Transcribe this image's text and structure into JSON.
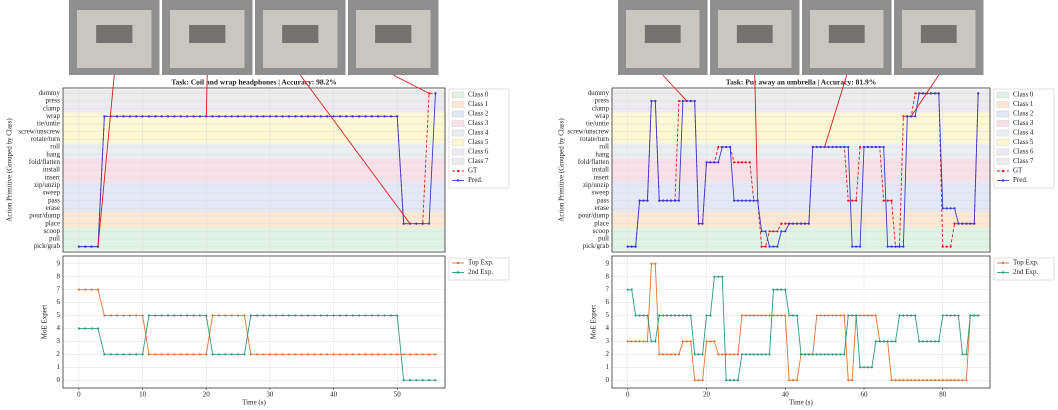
{
  "chart_data": [
    {
      "type": "line",
      "title": "Task: Coil and wrap headphones | Accuracy: 98.2%",
      "ylabel": "Action Primitive (Grouped by Class)",
      "y_categories": [
        "pick/grab",
        "pull",
        "scoop",
        "place",
        "pour/dump",
        "erase",
        "pass",
        "sweep",
        "zip/unzip",
        "insert",
        "install",
        "fold/flatten",
        "hang",
        "roll",
        "rotate/turn",
        "screw/unscrew",
        "tie/untie",
        "wrap",
        "clamp",
        "press",
        "dummy"
      ],
      "category_class": [
        0,
        0,
        0,
        1,
        1,
        2,
        2,
        2,
        2,
        3,
        3,
        3,
        4,
        4,
        5,
        5,
        5,
        5,
        6,
        7,
        7
      ],
      "classes": [
        {
          "name": "Class 0",
          "color": "#dff2e3"
        },
        {
          "name": "Class 1",
          "color": "#fde6d2"
        },
        {
          "name": "Class 2",
          "color": "#e2e8f5"
        },
        {
          "name": "Class 3",
          "color": "#f8e0e8"
        },
        {
          "name": "Class 4",
          "color": "#ebeef0"
        },
        {
          "name": "Class 5",
          "color": "#fdf7d2"
        },
        {
          "name": "Class 6",
          "color": "#eee8f3"
        },
        {
          "name": "Class 7",
          "color": "#ebebeb"
        }
      ],
      "xlim": [
        -2.5,
        57.5
      ],
      "grid": true,
      "legend": "outside right",
      "x": [
        0,
        1,
        2,
        3,
        4,
        5,
        6,
        7,
        8,
        9,
        10,
        11,
        12,
        13,
        14,
        15,
        16,
        17,
        18,
        19,
        20,
        21,
        22,
        23,
        24,
        25,
        26,
        27,
        28,
        29,
        30,
        31,
        32,
        33,
        34,
        35,
        36,
        37,
        38,
        39,
        40,
        41,
        42,
        43,
        44,
        45,
        46,
        47,
        48,
        49,
        50,
        51,
        52,
        53,
        54,
        55,
        56
      ],
      "series": [
        {
          "name": "GT",
          "color": "#e41a1c",
          "linestyle": "dashed",
          "values": [
            0,
            0,
            0,
            0,
            17,
            17,
            17,
            17,
            17,
            17,
            17,
            17,
            17,
            17,
            17,
            17,
            17,
            17,
            17,
            17,
            17,
            17,
            17,
            17,
            17,
            17,
            17,
            17,
            17,
            17,
            17,
            17,
            17,
            17,
            17,
            17,
            17,
            17,
            17,
            17,
            17,
            17,
            17,
            17,
            17,
            17,
            17,
            17,
            17,
            17,
            17,
            3,
            3,
            3,
            3,
            20,
            20
          ]
        },
        {
          "name": "Pred.",
          "color": "#3a3ad6",
          "linestyle": "solid",
          "values": [
            0,
            0,
            0,
            0,
            17,
            17,
            17,
            17,
            17,
            17,
            17,
            17,
            17,
            17,
            17,
            17,
            17,
            17,
            17,
            17,
            17,
            17,
            17,
            17,
            17,
            17,
            17,
            17,
            17,
            17,
            17,
            17,
            17,
            17,
            17,
            17,
            17,
            17,
            17,
            17,
            17,
            17,
            17,
            17,
            17,
            17,
            17,
            17,
            17,
            17,
            17,
            3,
            3,
            3,
            3,
            3,
            20
          ]
        }
      ]
    },
    {
      "type": "line",
      "xlabel": "Time (s)",
      "ylabel": "MoE Expert",
      "xlim": [
        -2.5,
        57.5
      ],
      "xticks": [
        0,
        10,
        20,
        30,
        40,
        50
      ],
      "ylim": [
        -0.6,
        9.6
      ],
      "yticks": [
        0,
        1,
        2,
        3,
        4,
        5,
        6,
        7,
        8,
        9
      ],
      "grid": true,
      "legend": "outside right",
      "x": [
        0,
        1,
        2,
        3,
        4,
        5,
        6,
        7,
        8,
        9,
        10,
        11,
        12,
        13,
        14,
        15,
        16,
        17,
        18,
        19,
        20,
        21,
        22,
        23,
        24,
        25,
        26,
        27,
        28,
        29,
        30,
        31,
        32,
        33,
        34,
        35,
        36,
        37,
        38,
        39,
        40,
        41,
        42,
        43,
        44,
        45,
        46,
        47,
        48,
        49,
        50,
        51,
        52,
        53,
        54,
        55,
        56
      ],
      "series": [
        {
          "name": "Top Exp.",
          "color": "#e8732c",
          "values": [
            7,
            7,
            7,
            7,
            5,
            5,
            5,
            5,
            5,
            5,
            5,
            2,
            2,
            2,
            2,
            2,
            2,
            2,
            2,
            2,
            2,
            5,
            5,
            5,
            5,
            5,
            5,
            2,
            2,
            2,
            2,
            2,
            2,
            2,
            2,
            2,
            2,
            2,
            2,
            2,
            2,
            2,
            2,
            2,
            2,
            2,
            2,
            2,
            2,
            2,
            2,
            2,
            2,
            2,
            2,
            2,
            2
          ]
        },
        {
          "name": "2nd Exp.",
          "color": "#2a9d78",
          "values": [
            4,
            4,
            4,
            4,
            2,
            2,
            2,
            2,
            2,
            2,
            2,
            5,
            5,
            5,
            5,
            5,
            5,
            5,
            5,
            5,
            5,
            2,
            2,
            2,
            2,
            2,
            2,
            5,
            5,
            5,
            5,
            5,
            5,
            5,
            5,
            5,
            5,
            5,
            5,
            5,
            5,
            5,
            5,
            5,
            5,
            5,
            5,
            5,
            5,
            5,
            5,
            0,
            0,
            0,
            0,
            0,
            0
          ]
        }
      ]
    },
    {
      "type": "line",
      "title": "Task: Put away an umbrella | Accuracy: 81.9%",
      "ylabel": "Action Primitive (Grouped by Class)",
      "y_categories": [
        "pick/grab",
        "pull",
        "scoop",
        "place",
        "pour/dump",
        "erase",
        "pass",
        "sweep",
        "zip/unzip",
        "insert",
        "install",
        "fold/flatten",
        "hang",
        "roll",
        "rotate/turn",
        "screw/unscrew",
        "tie/untie",
        "wrap",
        "clamp",
        "press",
        "dummy"
      ],
      "category_class": [
        0,
        0,
        0,
        1,
        1,
        2,
        2,
        2,
        2,
        3,
        3,
        3,
        4,
        4,
        5,
        5,
        5,
        5,
        6,
        7,
        7
      ],
      "classes": [
        {
          "name": "Class 0",
          "color": "#dff2e3"
        },
        {
          "name": "Class 1",
          "color": "#fde6d2"
        },
        {
          "name": "Class 2",
          "color": "#e2e8f5"
        },
        {
          "name": "Class 3",
          "color": "#f8e0e8"
        },
        {
          "name": "Class 4",
          "color": "#ebeef0"
        },
        {
          "name": "Class 5",
          "color": "#fdf7d2"
        },
        {
          "name": "Class 6",
          "color": "#eee8f3"
        },
        {
          "name": "Class 7",
          "color": "#ebebeb"
        }
      ],
      "xlim": [
        -4,
        92
      ],
      "grid": true,
      "legend": "outside right",
      "x": [
        0,
        1,
        2,
        3,
        4,
        5,
        6,
        7,
        8,
        9,
        10,
        11,
        12,
        13,
        14,
        15,
        16,
        17,
        18,
        19,
        20,
        21,
        22,
        23,
        24,
        25,
        26,
        27,
        28,
        29,
        30,
        31,
        32,
        33,
        34,
        35,
        36,
        37,
        38,
        39,
        40,
        41,
        42,
        43,
        44,
        45,
        46,
        47,
        48,
        49,
        50,
        51,
        52,
        53,
        54,
        55,
        56,
        57,
        58,
        59,
        60,
        61,
        62,
        63,
        64,
        65,
        66,
        67,
        68,
        69,
        70,
        71,
        72,
        73,
        74,
        75,
        76,
        77,
        78,
        79,
        80,
        81,
        82,
        83,
        84,
        85,
        86,
        87,
        88,
        89
      ],
      "series": [
        {
          "name": "GT",
          "color": "#e41a1c",
          "linestyle": "dashed",
          "values": [
            0,
            0,
            0,
            6,
            6,
            6,
            19,
            19,
            6,
            6,
            6,
            6,
            6,
            19,
            19,
            19,
            19,
            19,
            3,
            3,
            11,
            11,
            11,
            13,
            13,
            13,
            13,
            11,
            11,
            11,
            11,
            11,
            6,
            6,
            0,
            0,
            2,
            2,
            2,
            3,
            3,
            3,
            3,
            3,
            3,
            3,
            3,
            13,
            13,
            13,
            13,
            13,
            13,
            13,
            13,
            13,
            6,
            6,
            6,
            13,
            13,
            13,
            13,
            13,
            13,
            6,
            6,
            6,
            0,
            0,
            17,
            17,
            17,
            20,
            20,
            20,
            20,
            20,
            20,
            20,
            0,
            0,
            0,
            3,
            3,
            3,
            3,
            3,
            3,
            20
          ]
        },
        {
          "name": "Pred.",
          "color": "#3a3ad6",
          "linestyle": "solid",
          "values": [
            0,
            0,
            0,
            6,
            6,
            6,
            19,
            19,
            6,
            6,
            6,
            6,
            6,
            6,
            19,
            19,
            19,
            19,
            3,
            3,
            11,
            11,
            11,
            11,
            13,
            13,
            13,
            6,
            6,
            6,
            6,
            6,
            6,
            6,
            2,
            2,
            0,
            0,
            0,
            2,
            2,
            3,
            3,
            3,
            3,
            3,
            3,
            13,
            13,
            13,
            13,
            13,
            13,
            13,
            13,
            13,
            13,
            0,
            0,
            0,
            13,
            13,
            13,
            13,
            13,
            13,
            0,
            0,
            0,
            0,
            0,
            17,
            17,
            17,
            20,
            20,
            20,
            20,
            20,
            20,
            5,
            5,
            5,
            5,
            3,
            3,
            3,
            3,
            3,
            20
          ]
        }
      ]
    },
    {
      "type": "line",
      "xlabel": "Time (s)",
      "ylabel": "MoE Expert",
      "xlim": [
        -4,
        92
      ],
      "xticks": [
        0,
        20,
        40,
        60,
        80
      ],
      "ylim": [
        -0.6,
        9.6
      ],
      "yticks": [
        0,
        1,
        2,
        3,
        4,
        5,
        6,
        7,
        8,
        9
      ],
      "grid": true,
      "legend": "outside right",
      "x": [
        0,
        1,
        2,
        3,
        4,
        5,
        6,
        7,
        8,
        9,
        10,
        11,
        12,
        13,
        14,
        15,
        16,
        17,
        18,
        19,
        20,
        21,
        22,
        23,
        24,
        25,
        26,
        27,
        28,
        29,
        30,
        31,
        32,
        33,
        34,
        35,
        36,
        37,
        38,
        39,
        40,
        41,
        42,
        43,
        44,
        45,
        46,
        47,
        48,
        49,
        50,
        51,
        52,
        53,
        54,
        55,
        56,
        57,
        58,
        59,
        60,
        61,
        62,
        63,
        64,
        65,
        66,
        67,
        68,
        69,
        70,
        71,
        72,
        73,
        74,
        75,
        76,
        77,
        78,
        79,
        80,
        81,
        82,
        83,
        84,
        85,
        86,
        87,
        88,
        89
      ],
      "series": [
        {
          "name": "Top Exp.",
          "color": "#e8732c",
          "values": [
            3,
            3,
            3,
            3,
            3,
            3,
            9,
            9,
            2,
            2,
            2,
            2,
            2,
            2,
            3,
            3,
            3,
            0,
            0,
            0,
            3,
            3,
            3,
            2,
            2,
            2,
            2,
            2,
            2,
            5,
            5,
            5,
            5,
            5,
            5,
            5,
            5,
            5,
            5,
            5,
            5,
            0,
            0,
            0,
            2,
            2,
            2,
            2,
            5,
            5,
            5,
            5,
            5,
            5,
            5,
            5,
            0,
            0,
            5,
            5,
            5,
            5,
            5,
            5,
            3,
            3,
            3,
            0,
            0,
            0,
            0,
            0,
            0,
            0,
            0,
            0,
            0,
            0,
            0,
            0,
            0,
            0,
            0,
            0,
            0,
            0,
            0,
            5,
            5,
            5
          ]
        },
        {
          "name": "2nd Exp.",
          "color": "#2a9d78",
          "values": [
            7,
            7,
            5,
            5,
            5,
            5,
            3,
            3,
            5,
            5,
            5,
            5,
            5,
            5,
            5,
            5,
            5,
            2,
            2,
            2,
            5,
            5,
            8,
            8,
            8,
            0,
            0,
            0,
            0,
            2,
            2,
            2,
            2,
            2,
            2,
            2,
            2,
            7,
            7,
            7,
            7,
            5,
            5,
            5,
            2,
            2,
            2,
            2,
            2,
            2,
            2,
            2,
            2,
            2,
            2,
            2,
            5,
            5,
            5,
            1,
            1,
            1,
            1,
            3,
            3,
            3,
            3,
            3,
            3,
            5,
            5,
            5,
            5,
            5,
            3,
            3,
            3,
            3,
            3,
            3,
            5,
            5,
            5,
            5,
            5,
            2,
            2,
            5,
            5,
            5
          ]
        }
      ]
    }
  ]
}
